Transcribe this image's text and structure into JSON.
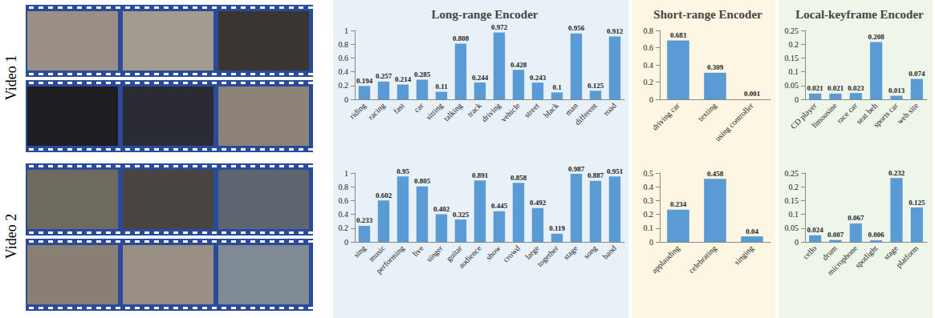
{
  "row_labels": [
    "Video 1",
    "Video 2"
  ],
  "column_titles": [
    "Long-range Encoder",
    "Short-range Encoder",
    "Local-keyframe Encoder"
  ],
  "chart_data": [
    {
      "type": "bar",
      "categories": [
        "riding",
        "racing",
        "fast",
        "car",
        "sitting",
        "talking",
        "track",
        "driving",
        "vehicle",
        "street",
        "black",
        "man",
        "different",
        "road"
      ],
      "values": [
        0.194,
        0.257,
        0.214,
        0.285,
        0.11,
        0.808,
        0.244,
        0.972,
        0.428,
        0.243,
        0.1,
        0.956,
        0.125,
        0.912
      ],
      "color": "#5b9bd5",
      "ylim": [
        0,
        1
      ],
      "yticks": [
        0,
        0.2,
        0.4,
        0.6,
        0.8,
        1
      ],
      "grid": false,
      "data_labels": true
    },
    {
      "type": "bar",
      "categories": [
        "driving car",
        "texting",
        "using controller"
      ],
      "values": [
        0.683,
        0.309,
        0.001
      ],
      "color": "#5b9bd5",
      "ylim": [
        0,
        0.8
      ],
      "yticks": [
        0,
        0.2,
        0.4,
        0.6,
        0.8
      ],
      "grid": false,
      "data_labels": true
    },
    {
      "type": "bar",
      "categories": [
        "CD player",
        "limousine",
        "race car",
        "seat belt",
        "sports car",
        "web site"
      ],
      "values": [
        0.021,
        0.021,
        0.023,
        0.208,
        0.013,
        0.074
      ],
      "color": "#5b9bd5",
      "ylim": [
        0,
        0.25
      ],
      "yticks": [
        0,
        0.05,
        0.1,
        0.15,
        0.2,
        0.25
      ],
      "grid": false,
      "data_labels": true
    },
    {
      "type": "bar",
      "categories": [
        "sing",
        "music",
        "performing",
        "live",
        "singer",
        "guitar",
        "audience",
        "show",
        "crowd",
        "large",
        "together",
        "stage",
        "song",
        "band"
      ],
      "values": [
        0.233,
        0.602,
        0.95,
        0.805,
        0.402,
        0.325,
        0.891,
        0.445,
        0.858,
        0.492,
        0.119,
        0.987,
        0.887,
        0.951
      ],
      "color": "#5b9bd5",
      "ylim": [
        0,
        1
      ],
      "yticks": [
        0,
        0.2,
        0.4,
        0.6,
        0.8,
        1
      ],
      "grid": false,
      "data_labels": true
    },
    {
      "type": "bar",
      "categories": [
        "applauding",
        "celebrating",
        "singing"
      ],
      "values": [
        0.234,
        0.458,
        0.04
      ],
      "color": "#5b9bd5",
      "ylim": [
        0,
        0.5
      ],
      "yticks": [
        0,
        0.1,
        0.2,
        0.3,
        0.4,
        0.5
      ],
      "grid": false,
      "data_labels": true
    },
    {
      "type": "bar",
      "categories": [
        "cello",
        "drum",
        "microphone",
        "spotlight",
        "stage",
        "platform"
      ],
      "values": [
        0.024,
        0.007,
        0.067,
        0.006,
        0.232,
        0.125
      ],
      "color": "#5b9bd5",
      "ylim": [
        0,
        0.25
      ],
      "yticks": [
        0,
        0.05,
        0.1,
        0.15,
        0.2,
        0.25
      ],
      "grid": false,
      "data_labels": true
    }
  ]
}
